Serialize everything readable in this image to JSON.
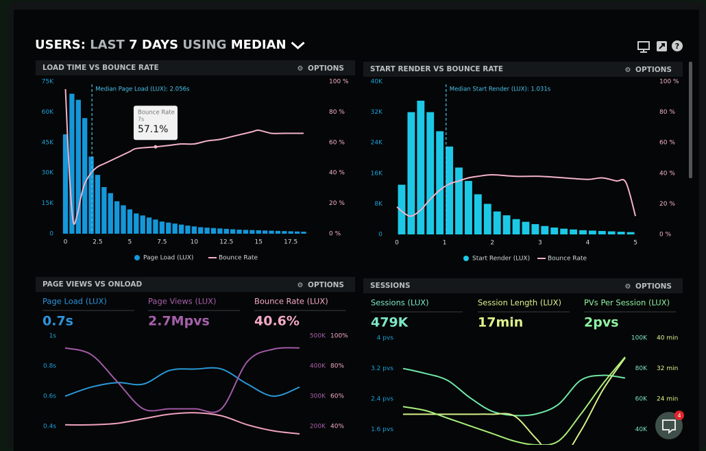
{
  "header": {
    "parts": [
      "USERS:",
      "LAST",
      "7 DAYS",
      "USING",
      "MEDIAN"
    ]
  },
  "chat_badge": "4",
  "chart_data": [
    {
      "type": "combo",
      "title": "LOAD TIME VS BOUNCE RATE",
      "options_label": "OPTIONS",
      "annotation": {
        "text": "Median Page Load (LUX): 2.056s",
        "x": 2.056
      },
      "tooltip": {
        "title": "Bounce Rate",
        "subtitle": "7s",
        "value_label": "57.1%",
        "value": 57.1,
        "x": 7
      },
      "xlim": [
        -0.4,
        19.3
      ],
      "xticks": [
        0,
        2.5,
        5,
        7.5,
        10,
        12.5,
        15,
        17.5
      ],
      "ylim": [
        0,
        75000
      ],
      "yticks": [
        0,
        {
          "value": 15000,
          "label": "15K"
        },
        {
          "value": 30000,
          "label": "30K"
        },
        {
          "value": 45000,
          "label": "45K"
        },
        {
          "value": 60000,
          "label": "60K"
        },
        {
          "value": 75000,
          "label": "75K"
        }
      ],
      "y2lim": [
        0,
        100
      ],
      "y2ticks": [
        {
          "value": 0,
          "label": "0 %"
        },
        {
          "value": 20,
          "label": "20 %"
        },
        {
          "value": 40,
          "label": "40 %"
        },
        {
          "value": 60,
          "label": "60 %"
        },
        {
          "value": 80,
          "label": "80 %"
        },
        {
          "value": 100,
          "label": "100 %"
        }
      ],
      "legend": "bottom",
      "series": [
        {
          "name": "Page Load (LUX)",
          "type": "bar",
          "color": "#1597d9",
          "x": [
            0,
            0.5,
            1,
            1.5,
            2,
            2.5,
            3,
            3.5,
            4,
            4.5,
            5,
            5.5,
            6,
            6.5,
            7,
            7.5,
            8,
            8.5,
            9,
            9.5,
            10,
            10.5,
            11,
            11.5,
            12,
            12.5,
            13,
            13.5,
            14,
            14.5,
            15,
            15.5,
            16,
            16.5,
            17,
            17.5,
            18,
            18.5
          ],
          "values": [
            49000,
            69000,
            66000,
            57000,
            38000,
            29000,
            23000,
            20000,
            16000,
            14000,
            12000,
            10000,
            9000,
            8000,
            7000,
            6000,
            5500,
            5000,
            4500,
            4000,
            3600,
            3200,
            3000,
            2800,
            2600,
            2400,
            2200,
            2000,
            1900,
            1800,
            1700,
            1600,
            1500,
            1400,
            1300,
            1200,
            1100,
            1000
          ]
        },
        {
          "name": "Bounce Rate",
          "type": "line",
          "axis": "y2",
          "color": "#f4b3c8",
          "x": [
            0,
            0.3,
            0.6,
            0.9,
            1.2,
            1.5,
            2,
            2.5,
            3,
            4,
            5,
            5.5,
            7,
            8,
            9,
            10,
            11,
            12,
            13,
            13.5,
            14.5,
            15,
            16,
            17,
            18.5
          ],
          "values": [
            95,
            40,
            8,
            12,
            24,
            33,
            40,
            44,
            46,
            50,
            54,
            56,
            57.1,
            58,
            59,
            59,
            61,
            62,
            64,
            65,
            67,
            68,
            66,
            66,
            66
          ]
        }
      ]
    },
    {
      "type": "combo",
      "title": "START RENDER VS BOUNCE RATE",
      "options_label": "OPTIONS",
      "annotation": {
        "text": "Median Start Render (LUX): 1.031s",
        "x": 1.031
      },
      "xlim": [
        -0.15,
        5.2
      ],
      "xticks": [
        0,
        1,
        2,
        3,
        4,
        5
      ],
      "ylim": [
        0,
        40000
      ],
      "yticks": [
        0,
        {
          "value": 8000,
          "label": "8K"
        },
        {
          "value": 16000,
          "label": "16K"
        },
        {
          "value": 24000,
          "label": "24K"
        },
        {
          "value": 32000,
          "label": "32K"
        },
        {
          "value": 40000,
          "label": "40K"
        }
      ],
      "y2lim": [
        0,
        100
      ],
      "y2ticks": [
        {
          "value": 0,
          "label": "0 %"
        },
        {
          "value": 20,
          "label": "20 %"
        },
        {
          "value": 40,
          "label": "40 %"
        },
        {
          "value": 60,
          "label": "60 %"
        },
        {
          "value": 80,
          "label": "80 %"
        },
        {
          "value": 100,
          "label": "100 %"
        }
      ],
      "legend": "bottom",
      "series": [
        {
          "name": "Start Render (LUX)",
          "type": "bar",
          "color": "#1cc8e6",
          "x": [
            0.1,
            0.3,
            0.5,
            0.7,
            0.9,
            1.1,
            1.3,
            1.5,
            1.7,
            1.9,
            2.1,
            2.3,
            2.5,
            2.7,
            2.9,
            3.1,
            3.3,
            3.5,
            3.7,
            3.9,
            4.1,
            4.3,
            4.5,
            4.7,
            4.9
          ],
          "values": [
            13000,
            32000,
            35000,
            32000,
            27000,
            23000,
            17500,
            14000,
            10500,
            8000,
            6000,
            5000,
            4000,
            3300,
            2700,
            2200,
            1800,
            1500,
            1300,
            1100,
            1000,
            900,
            800,
            700,
            600
          ]
        },
        {
          "name": "Bounce Rate",
          "type": "line",
          "axis": "y2",
          "color": "#f4b3c8",
          "x": [
            0,
            0.15,
            0.3,
            0.5,
            0.7,
            0.9,
            1.1,
            1.3,
            1.5,
            1.7,
            2,
            2.5,
            3,
            3.5,
            4,
            4.3,
            4.6,
            4.8,
            5
          ],
          "values": [
            18,
            14,
            12,
            16,
            23,
            29,
            33,
            35,
            37,
            38,
            39,
            38,
            38,
            37,
            36,
            37,
            35,
            34,
            12
          ]
        }
      ]
    },
    {
      "type": "line",
      "title": "PAGE VIEWS VS ONLOAD",
      "options_label": "OPTIONS",
      "kpis": [
        {
          "label": "Page Load (LUX)",
          "value": "0.7s",
          "color": "#2f93dc"
        },
        {
          "label": "Page Views (LUX)",
          "value": "2.7Mpvs",
          "color": "#a660ab"
        },
        {
          "label": "Bounce Rate (LUX)",
          "value": "40.6%",
          "color": "#f3aac6"
        }
      ],
      "ylim": [
        0.3,
        1
      ],
      "yticks": [
        {
          "value": 0.4,
          "label": "0.4s"
        },
        {
          "value": 0.6,
          "label": "0.6s"
        },
        {
          "value": 0.8,
          "label": "0.8s"
        },
        {
          "value": 1,
          "label": "1s"
        }
      ],
      "y2lim": [
        150000,
        500000
      ],
      "y2ticks": [
        {
          "value": 200000,
          "label": "200K"
        },
        {
          "value": 300000,
          "label": "300K"
        },
        {
          "value": 400000,
          "label": "400K"
        },
        {
          "value": 500000,
          "label": "500K"
        }
      ],
      "y3lim": [
        30,
        100
      ],
      "y3ticks": [
        {
          "value": 40,
          "label": "40%"
        },
        {
          "value": 60,
          "label": "60%"
        },
        {
          "value": 80,
          "label": "80%"
        },
        {
          "value": 100,
          "label": "100%"
        }
      ],
      "series": [
        {
          "color": "#2a9ad8",
          "values": [
            0.6,
            0.66,
            0.69,
            0.68,
            0.77,
            0.78,
            0.78,
            0.68,
            0.6,
            0.66
          ]
        },
        {
          "color": "#a05aa6",
          "axis": "y2",
          "values": [
            460000,
            438000,
            348000,
            258000,
            258000,
            258000,
            258000,
            415000,
            456000,
            460000
          ]
        },
        {
          "color": "#f0a2bf",
          "axis": "y3",
          "values": [
            41,
            41,
            42,
            45,
            48,
            49,
            47,
            41,
            37,
            35
          ]
        }
      ]
    },
    {
      "type": "line",
      "title": "SESSIONS",
      "options_label": "OPTIONS",
      "kpis": [
        {
          "label": "Sessions (LUX)",
          "value": "479K",
          "color": "#7de8c6"
        },
        {
          "label": "Session Length (LUX)",
          "value": "17min",
          "color": "#dff28e"
        },
        {
          "label": "PVs Per Session (LUX)",
          "value": "2pvs",
          "color": "#8ff0a0"
        }
      ],
      "ylim": [
        1.2,
        4
      ],
      "yticks": [
        {
          "value": 1.6,
          "label": "1.6 pvs"
        },
        {
          "value": 2.4,
          "label": "2.4 pvs"
        },
        {
          "value": 3.2,
          "label": "3.2 pvs"
        },
        {
          "value": 4,
          "label": "4 pvs"
        }
      ],
      "y2lim": [
        30000,
        100000
      ],
      "y2ticks": [
        {
          "value": 40000,
          "label": "40K"
        },
        {
          "value": 60000,
          "label": "60K"
        },
        {
          "value": 80000,
          "label": "80K"
        },
        {
          "value": 100000,
          "label": "100K"
        }
      ],
      "y3lim": [
        12,
        40
      ],
      "y3ticks": [
        {
          "value": 24,
          "label": "24 min"
        },
        {
          "value": 32,
          "label": "32 min"
        },
        {
          "value": 40,
          "label": "40 min"
        }
      ],
      "series": [
        {
          "color": "#6fe6a6",
          "values": [
            3.2,
            3.07,
            2.89,
            2.44,
            2.08,
            1.97,
            2.01,
            2.26,
            2.89,
            3.02,
            2.95
          ]
        },
        {
          "color": "#d6ef8a",
          "axis": "y2",
          "values": [
            50000,
            50000,
            50000,
            50000,
            50000,
            49000,
            34000,
            20000,
            39000,
            66000,
            87000
          ]
        },
        {
          "color": "#a8f07c",
          "axis": "y3",
          "values": [
            22,
            21,
            19,
            17,
            15,
            13,
            12,
            13,
            20,
            28,
            35
          ]
        }
      ]
    }
  ]
}
